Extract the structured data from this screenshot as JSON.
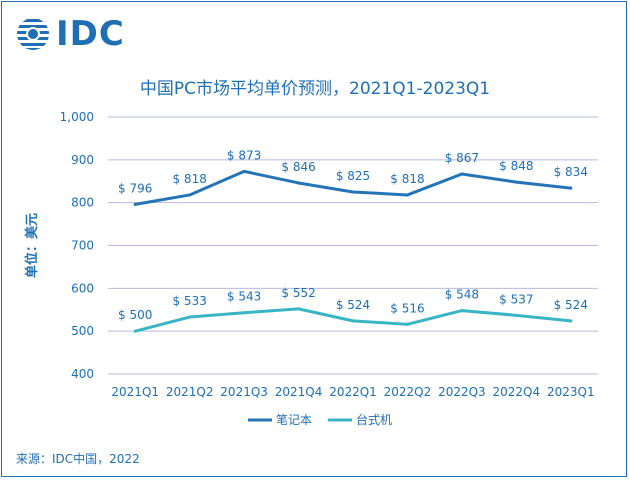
{
  "logo": {
    "text": "IDC"
  },
  "source": "来源：IDC中国，2022",
  "colors": {
    "accent": "#1f6fb5",
    "notebook": "#2574b8",
    "desktop": "#3ab5c3",
    "grid": "#b8b8e0"
  },
  "chart_data": {
    "type": "line",
    "title": "中国PC市场平均单价预测，2021Q1-2023Q1",
    "ylabel": "单位：美元",
    "xlabel": "",
    "ylim": [
      400,
      1000
    ],
    "yticks": [
      400,
      500,
      600,
      700,
      800,
      900,
      1000
    ],
    "ytick_labels": [
      "400",
      "500",
      "600",
      "700",
      "800",
      "900",
      "1,000"
    ],
    "grid": true,
    "legend": "bottom",
    "categories": [
      "2021Q1",
      "2021Q2",
      "2021Q3",
      "2021Q4",
      "2022Q1",
      "2022Q2",
      "2022Q3",
      "2022Q4",
      "2023Q1"
    ],
    "series": [
      {
        "name": "笔记本",
        "values": [
          796,
          818,
          873,
          846,
          825,
          818,
          867,
          848,
          834
        ],
        "labels": [
          "$ 796",
          "$ 818",
          "$ 873",
          "$ 846",
          "$ 825",
          "$ 818",
          "$ 867",
          "$ 848",
          "$ 834"
        ],
        "color": "#2574b8"
      },
      {
        "name": "台式机",
        "values": [
          500,
          533,
          543,
          552,
          524,
          516,
          548,
          537,
          524
        ],
        "labels": [
          "$ 500",
          "$ 533",
          "$ 543",
          "$ 552",
          "$ 524",
          "$ 516",
          "$ 548",
          "$ 537",
          "$ 524"
        ],
        "color": "#3ab5c3"
      }
    ]
  }
}
